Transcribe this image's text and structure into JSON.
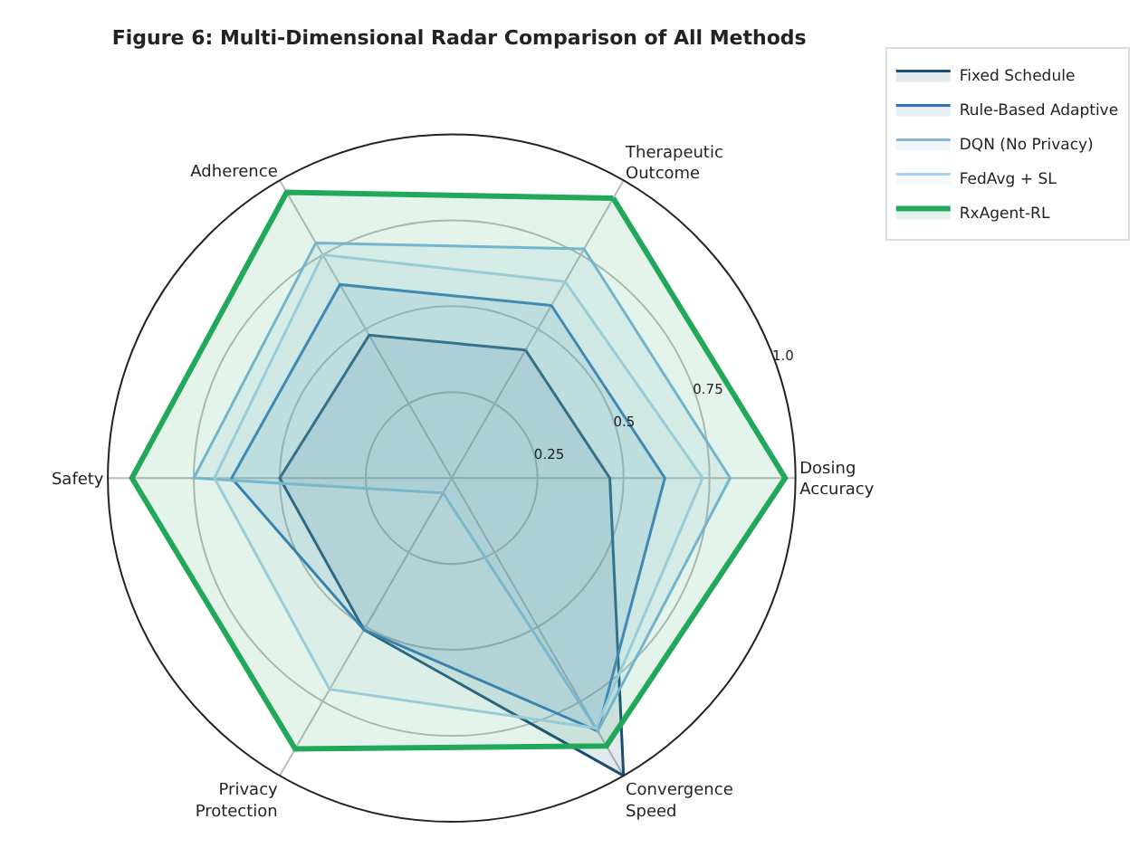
{
  "chart_data": {
    "type": "radar",
    "title": "Figure 6: Multi-Dimensional Radar Comparison of All Methods",
    "categories": [
      "Therapeutic\nOutcome",
      "Dosing\nAccuracy",
      "Convergence\nSpeed",
      "Privacy\nProtection",
      "Safety",
      "Adherence"
    ],
    "ylim": [
      0,
      1
    ],
    "yticks": [
      0.25,
      0.5,
      0.75,
      {
        "value": 1,
        "label": "1.0"
      }
    ],
    "grid": true,
    "legend": "top right",
    "marker": "none",
    "line_style": "solid",
    "series": [
      {
        "name": "Fixed Schedule",
        "color": "#1b4f72",
        "values": [
          0.43,
          0.46,
          1.0,
          0.51,
          0.5,
          0.48
        ]
      },
      {
        "name": "Rule-Based Adaptive",
        "color": "#2e75b6",
        "values": [
          0.58,
          0.62,
          0.85,
          0.51,
          0.64,
          0.65
        ]
      },
      {
        "name": "DQN (No Privacy)",
        "color": "#7fb8dc",
        "values": [
          0.77,
          0.81,
          0.85,
          0.05,
          0.75,
          0.79
        ]
      },
      {
        "name": "FedAvg + SL",
        "color": "#a9d3ea",
        "values": [
          0.66,
          0.73,
          0.84,
          0.71,
          0.69,
          0.75
        ]
      },
      {
        "name": "RxAgent-RL",
        "color": "#22a85a",
        "values": [
          0.94,
          0.97,
          0.9,
          0.91,
          0.93,
          0.96
        ]
      }
    ]
  }
}
